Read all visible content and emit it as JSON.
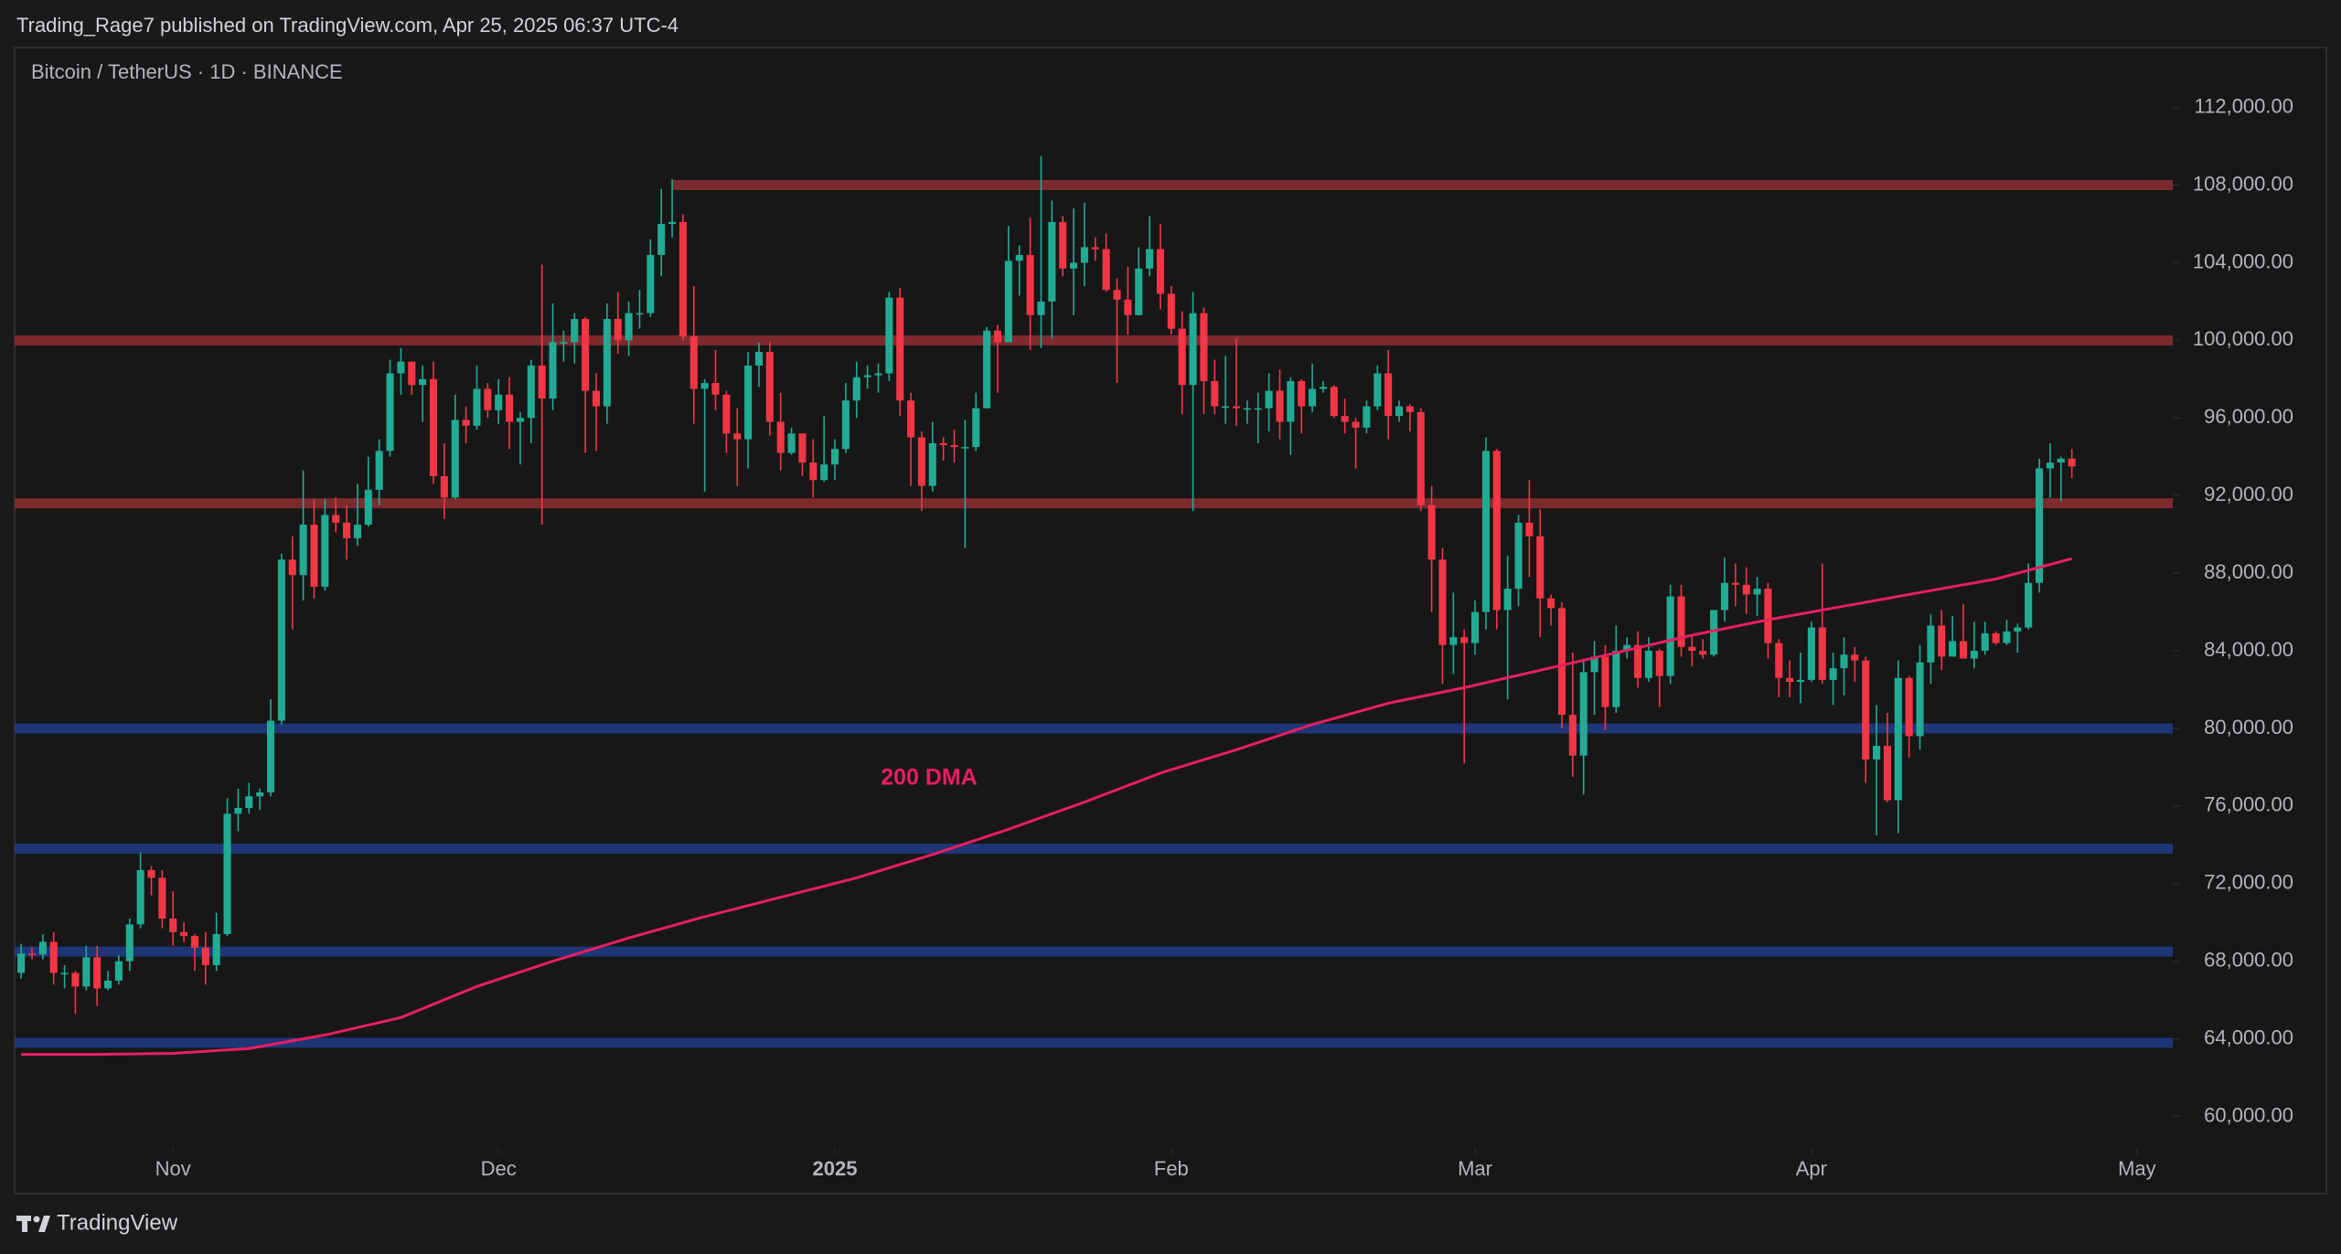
{
  "header": {
    "published": "Trading_Rage7 published on TradingView.com, Apr 25, 2025 06:37 UTC-4"
  },
  "footer": {
    "brand": "TradingView"
  },
  "chart_data": {
    "type": "candlestick",
    "title": "Bitcoin / TetherUS · 1D · BINANCE",
    "up_color": "#22ab94",
    "down_color": "#f23645",
    "grid": false,
    "xlim": [
      -0.6,
      198.3
    ],
    "xticks": [
      {
        "value": 14,
        "label": "Nov"
      },
      {
        "value": 44,
        "label": "Dec"
      },
      {
        "value": 75,
        "label": "2025"
      },
      {
        "value": 106,
        "label": "Feb"
      },
      {
        "value": 134,
        "label": "Mar"
      },
      {
        "value": 165,
        "label": "Apr"
      },
      {
        "value": 195,
        "label": "May"
      }
    ],
    "ylim": [
      58330,
      115090
    ],
    "yticks": [
      {
        "value": 60000,
        "label": "60,000.00"
      },
      {
        "value": 64000,
        "label": "64,000.00"
      },
      {
        "value": 68000,
        "label": "68,000.00"
      },
      {
        "value": 72000,
        "label": "72,000.00"
      },
      {
        "value": 76000,
        "label": "76,000.00"
      },
      {
        "value": 80000,
        "label": "80,000.00"
      },
      {
        "value": 84000,
        "label": "84,000.00"
      },
      {
        "value": 88000,
        "label": "88,000.00"
      },
      {
        "value": 92000,
        "label": "92,000.00"
      },
      {
        "value": 96000,
        "label": "96,000.00"
      },
      {
        "value": 100000,
        "label": "100,000.00"
      },
      {
        "value": 104000,
        "label": "104,000.00"
      },
      {
        "value": 108000,
        "label": "108,000.00"
      },
      {
        "value": 112000,
        "label": "112,000.00"
      }
    ],
    "levels": [
      {
        "value": 108000,
        "color": "#7d2a2e",
        "x0": 60
      },
      {
        "value": 100000,
        "color": "#7d2a2e"
      },
      {
        "value": 91600,
        "color": "#7d2a2e"
      },
      {
        "value": 80000,
        "color": "#1e3675"
      },
      {
        "value": 73800,
        "color": "#1e3675"
      },
      {
        "value": 68500,
        "color": "#1e3675"
      },
      {
        "value": 63800,
        "color": "#1e3675"
      }
    ],
    "lines": [
      {
        "name": "200 DMA",
        "color": "#e91e63",
        "x": [
          0,
          7,
          14,
          21,
          28,
          35,
          42,
          49,
          56,
          63,
          70,
          77,
          84,
          91,
          98,
          105,
          112,
          119,
          126,
          133,
          140,
          147,
          154,
          161,
          168,
          175,
          182,
          189
        ],
        "values": [
          63200,
          63200,
          63250,
          63500,
          64200,
          65100,
          66700,
          68000,
          69200,
          70300,
          71300,
          72300,
          73500,
          74800,
          76200,
          77700,
          78900,
          80200,
          81300,
          82100,
          83000,
          83900,
          84800,
          85600,
          86300,
          87000,
          87700,
          88750
        ]
      }
    ],
    "open": [
      67400,
      68400,
      68350,
      69000,
      67400,
      67400,
      66700,
      68200,
      66600,
      67000,
      68000,
      69900,
      72700,
      72300,
      70200,
      69500,
      69300,
      68700,
      67800,
      69400,
      75600,
      75900,
      76500,
      76700,
      80400,
      88700,
      87900,
      90500,
      87300,
      91000,
      90600,
      89800,
      90500,
      92300,
      94300,
      98300,
      98900,
      97700,
      98000,
      93000,
      91900,
      95900,
      95600,
      97500,
      96400,
      97200,
      95800,
      96000,
      98700,
      97000,
      99900,
      99900,
      101100,
      97400,
      96600,
      101100,
      100000,
      101400,
      101400,
      104400,
      106000,
      106100,
      100200,
      97500,
      97800,
      97200,
      95200,
      94900,
      98700,
      99400,
      95800,
      94200,
      95200,
      93700,
      92800,
      93600,
      94400,
      96900,
      98100,
      98200,
      98300,
      102200,
      96900,
      95000,
      92500,
      94700,
      94600,
      94500,
      94500,
      96500,
      100500,
      99900,
      104100,
      104400,
      101300,
      102000,
      106100,
      103700,
      104000,
      104800,
      104700,
      102600,
      102100,
      101300,
      103700,
      104700,
      102400,
      100600,
      97700,
      101400,
      97900,
      96600,
      96600,
      96500,
      96500,
      96500,
      97400,
      95800,
      97900,
      96600,
      97500,
      97600,
      96100,
      95800,
      95500,
      96600,
      98300,
      96100,
      96600,
      96300,
      91500,
      88700,
      84300,
      84700,
      84400,
      86000,
      94300,
      86100,
      87200,
      90600,
      89900,
      86700,
      86200,
      80700,
      78600,
      82900,
      83700,
      81100,
      84000,
      84300,
      82600,
      84000,
      82700,
      86800,
      84200,
      84000,
      83800,
      86100,
      87500,
      87400,
      86900,
      87200,
      84400,
      82600,
      82400,
      82500,
      85200,
      82500,
      83100,
      83800,
      83500,
      78400,
      79100,
      76300,
      82600,
      79600,
      83400,
      85300,
      83700,
      84500,
      83600,
      84000,
      84900,
      84400,
      85000,
      85200,
      87500,
      93400,
      93700,
      93900
    ],
    "high": [
      68900,
      68700,
      69400,
      69500,
      67800,
      67500,
      68800,
      68800,
      67500,
      68300,
      70200,
      73600,
      72900,
      72700,
      71600,
      70000,
      69400,
      69500,
      70500,
      76400,
      76900,
      77200,
      76900,
      81500,
      89000,
      89900,
      93300,
      91800,
      91800,
      91900,
      91500,
      92600,
      94000,
      94900,
      99000,
      99600,
      98900,
      98700,
      98900,
      94700,
      97200,
      96600,
      98700,
      97800,
      98000,
      98100,
      96300,
      99000,
      103900,
      101900,
      100500,
      101400,
      101200,
      98300,
      101900,
      102500,
      102000,
      102600,
      105200,
      107800,
      108300,
      106500,
      102800,
      98000,
      99500,
      97400,
      96500,
      99400,
      99900,
      99900,
      97300,
      95500,
      95200,
      94900,
      96100,
      94900,
      97800,
      98900,
      98700,
      98800,
      102500,
      102700,
      97300,
      95300,
      95800,
      95000,
      95400,
      95900,
      97300,
      100700,
      100800,
      105900,
      104900,
      106300,
      109500,
      107200,
      106400,
      106800,
      107100,
      105300,
      105500,
      103200,
      103800,
      104800,
      106400,
      106000,
      102800,
      101500,
      102500,
      101700,
      99000,
      99200,
      100100,
      96900,
      97300,
      98300,
      98500,
      98100,
      98000,
      98800,
      97900,
      97700,
      97000,
      96000,
      96900,
      98700,
      99500,
      96900,
      96700,
      96500,
      92500,
      89300,
      87000,
      85100,
      86600,
      95000,
      94400,
      88900,
      91000,
      92800,
      91300,
      86900,
      86500,
      83900,
      83600,
      84500,
      84300,
      85300,
      84700,
      85000,
      84700,
      84100,
      87400,
      87400,
      84800,
      84600,
      86100,
      88800,
      88500,
      88300,
      87800,
      87500,
      84600,
      83500,
      83900,
      85500,
      88500,
      83900,
      84700,
      84200,
      83700,
      81200,
      80800,
      83500,
      82700,
      84300,
      85900,
      86100,
      85800,
      86400,
      85500,
      85500,
      85000,
      85600,
      85400,
      88500,
      93900,
      94700,
      94000,
      94400
    ],
    "low": [
      67100,
      68100,
      68100,
      66800,
      66600,
      65300,
      66500,
      65700,
      66500,
      66800,
      67500,
      69700,
      71400,
      69700,
      68800,
      69000,
      67500,
      66800,
      67500,
      69300,
      74700,
      75600,
      75800,
      76500,
      80200,
      85100,
      86600,
      86700,
      87100,
      90100,
      88700,
      89400,
      90400,
      91500,
      94000,
      97200,
      97200,
      95800,
      92600,
      90800,
      91800,
      94700,
      95400,
      96000,
      95700,
      94400,
      93600,
      94700,
      90500,
      96400,
      98900,
      98800,
      94200,
      94300,
      95700,
      99300,
      99200,
      100600,
      101200,
      103300,
      105300,
      100000,
      95700,
      92200,
      96400,
      94200,
      92500,
      93400,
      97600,
      95100,
      93300,
      94100,
      93000,
      91900,
      92700,
      92800,
      94200,
      96000,
      97500,
      97300,
      97900,
      96100,
      92500,
      91200,
      92200,
      93800,
      93700,
      89300,
      94300,
      96500,
      97300,
      99900,
      102300,
      99500,
      99600,
      100100,
      103300,
      101300,
      102800,
      104100,
      102500,
      97800,
      100300,
      101300,
      103300,
      101600,
      100300,
      96200,
      91200,
      96200,
      96200,
      95700,
      95600,
      95700,
      94700,
      95300,
      94900,
      94100,
      95200,
      96300,
      97300,
      96000,
      95200,
      93400,
      95200,
      96400,
      94900,
      95800,
      95300,
      91200,
      86000,
      82300,
      82800,
      78200,
      83800,
      85100,
      85100,
      81500,
      86300,
      87800,
      84700,
      85300,
      80000,
      77500,
      76600,
      80700,
      79900,
      80800,
      83600,
      82100,
      82400,
      81100,
      82300,
      83700,
      83200,
      83600,
      83700,
      85500,
      86300,
      85900,
      85800,
      83600,
      81600,
      81600,
      81300,
      82400,
      82300,
      81200,
      81700,
      82400,
      77200,
      74500,
      76200,
      74600,
      78500,
      78900,
      82300,
      83000,
      83700,
      83600,
      83100,
      83800,
      84300,
      84300,
      83900,
      85100,
      87000,
      91900,
      91700,
      92900
    ],
    "close": [
      68400,
      68350,
      69000,
      67400,
      67400,
      66700,
      68200,
      66600,
      67000,
      68000,
      69900,
      72700,
      72300,
      70200,
      69500,
      69300,
      68700,
      67800,
      69400,
      75600,
      75900,
      76500,
      76700,
      80400,
      88700,
      87900,
      90500,
      87300,
      91000,
      90600,
      89800,
      90500,
      92300,
      94300,
      98300,
      98900,
      97700,
      98000,
      93000,
      91900,
      95900,
      95600,
      97500,
      96400,
      97200,
      95800,
      96000,
      98700,
      97000,
      99900,
      99900,
      101100,
      97400,
      96600,
      101100,
      100000,
      101400,
      101400,
      104400,
      106000,
      106100,
      100200,
      97500,
      97800,
      97200,
      95200,
      94900,
      98700,
      99400,
      95800,
      94200,
      95200,
      93700,
      92800,
      93600,
      94400,
      96900,
      98100,
      98200,
      98300,
      102200,
      96900,
      95000,
      92500,
      94700,
      94600,
      94500,
      94500,
      96500,
      100500,
      99900,
      104100,
      104400,
      101300,
      102000,
      106100,
      103700,
      104000,
      104800,
      104700,
      102600,
      102100,
      101300,
      103700,
      104700,
      102400,
      100600,
      97700,
      101400,
      97900,
      96600,
      96600,
      96500,
      96500,
      96500,
      97400,
      95800,
      97900,
      96600,
      97500,
      97600,
      96100,
      95800,
      95500,
      96600,
      98300,
      96100,
      96600,
      96300,
      91500,
      88700,
      84300,
      84700,
      84400,
      86000,
      94300,
      86100,
      87200,
      90600,
      89900,
      86700,
      86200,
      80700,
      78600,
      82900,
      83700,
      81100,
      84000,
      84300,
      82600,
      84000,
      82700,
      86800,
      84200,
      84000,
      83800,
      86100,
      87500,
      87400,
      86900,
      87200,
      84400,
      82600,
      82400,
      82500,
      85200,
      82500,
      83100,
      83800,
      83500,
      78400,
      79100,
      76300,
      82600,
      79600,
      83400,
      85300,
      83700,
      84500,
      83600,
      84000,
      84900,
      84400,
      85000,
      85200,
      87500,
      93400,
      93700,
      93900,
      93500
    ]
  }
}
